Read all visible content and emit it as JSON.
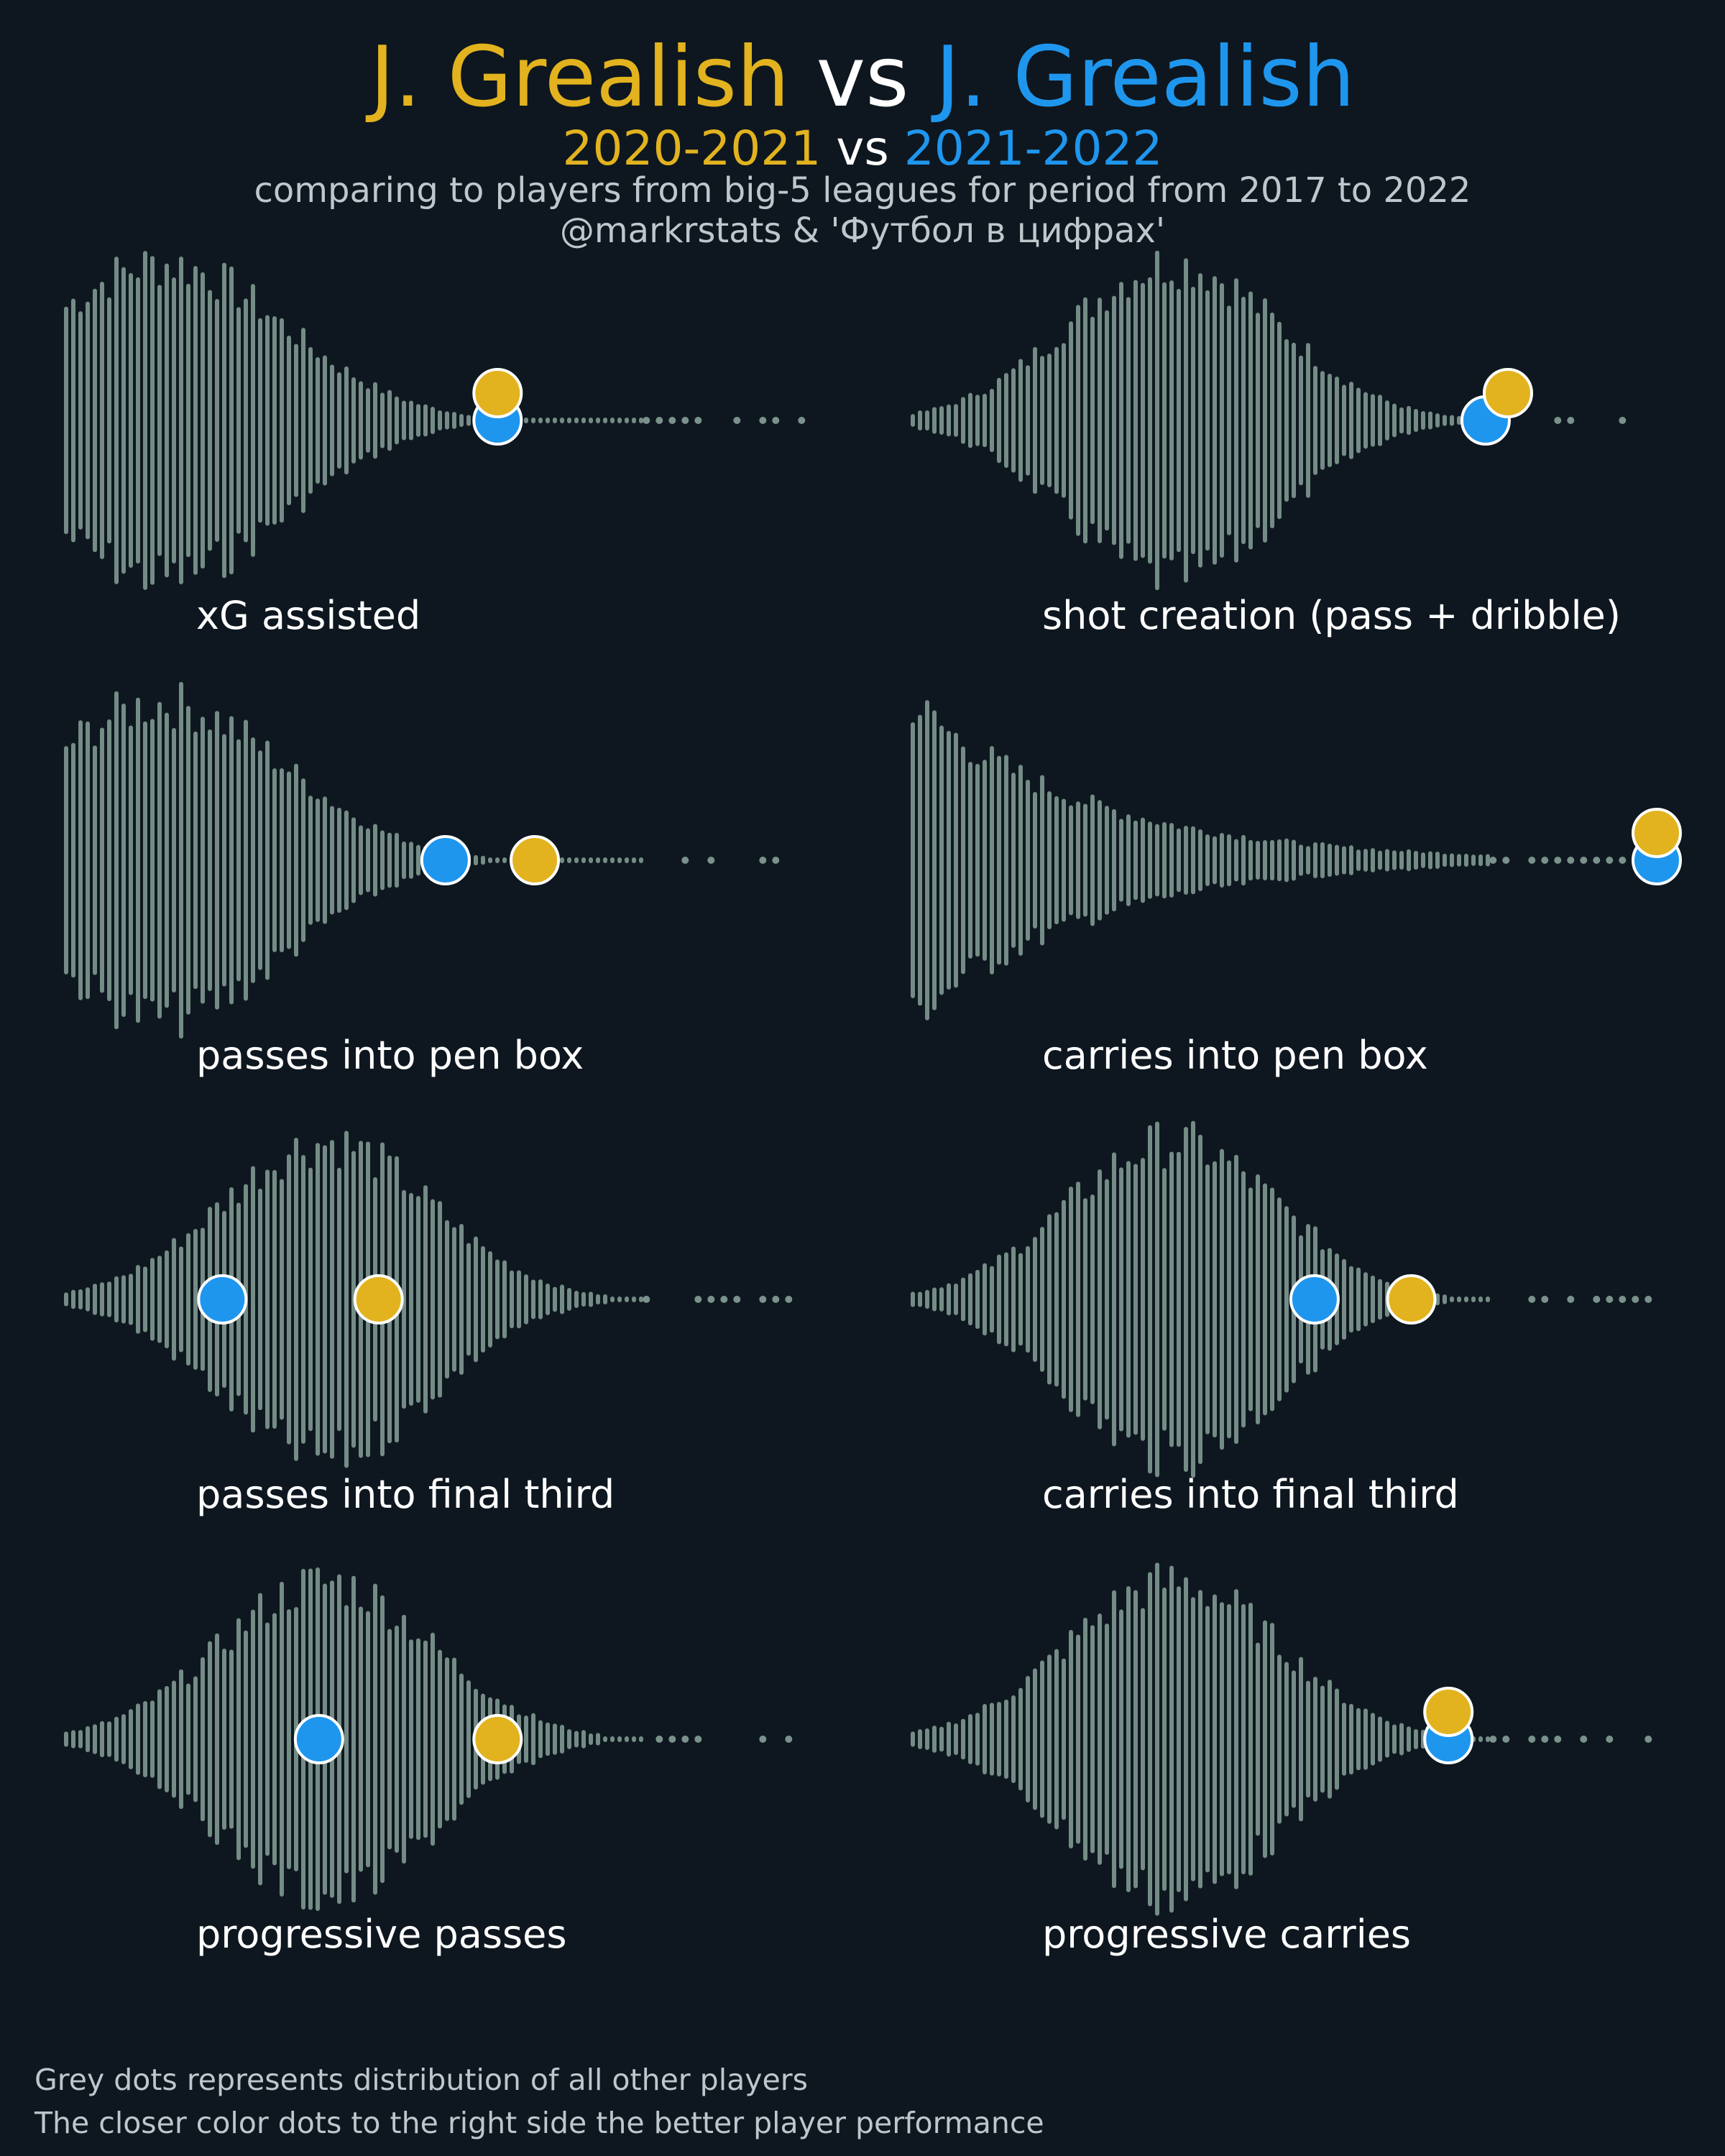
{
  "header": {
    "player1": "J. Grealish",
    "vs": "vs",
    "player2": "J. Grealish",
    "season1": "2020-2021",
    "season_vs": "vs",
    "season2": "2021-2022",
    "subtitle": "comparing to players from big-5 leagues for period from 2017 to 2022",
    "credit": "@markrstats & 'Футбол в цифрах'"
  },
  "colors": {
    "background": "#0e171f",
    "distribution_dots": "#7a928b",
    "season1": "#e2b31f",
    "season2": "#1f96ee"
  },
  "chart_data": [
    {
      "type": "scatter",
      "title": "xG assisted",
      "shape": "decay",
      "series": [
        {
          "name": "2021-2022",
          "x": 0.58
        },
        {
          "name": "2020-2021",
          "x": 0.58
        }
      ]
    },
    {
      "type": "scatter",
      "title": "shot creation (pass + dribble)",
      "shape": "peak",
      "series": [
        {
          "name": "2021-2022",
          "x": 0.77
        },
        {
          "name": "2020-2021",
          "x": 0.8
        }
      ]
    },
    {
      "type": "scatter",
      "title": "passes into pen box",
      "shape": "decay",
      "series": [
        {
          "name": "2021-2022",
          "x": 0.51
        },
        {
          "name": "2020-2021",
          "x": 0.63
        }
      ]
    },
    {
      "type": "scatter",
      "title": "carries into pen box",
      "shape": "exp",
      "series": [
        {
          "name": "2021-2022",
          "x": 1.0
        },
        {
          "name": "2020-2021",
          "x": 1.0
        }
      ]
    },
    {
      "type": "scatter",
      "title": "passes into final third",
      "shape": "peak",
      "series": [
        {
          "name": "2021-2022",
          "x": 0.21
        },
        {
          "name": "2020-2021",
          "x": 0.42
        }
      ]
    },
    {
      "type": "scatter",
      "title": "carries into final third",
      "shape": "peak",
      "series": [
        {
          "name": "2021-2022",
          "x": 0.54
        },
        {
          "name": "2020-2021",
          "x": 0.67
        }
      ]
    },
    {
      "type": "scatter",
      "title": "progressive passes",
      "shape": "peak",
      "series": [
        {
          "name": "2021-2022",
          "x": 0.34
        },
        {
          "name": "2020-2021",
          "x": 0.58
        }
      ]
    },
    {
      "type": "scatter",
      "title": "progressive carries",
      "shape": "peak",
      "series": [
        {
          "name": "2021-2022",
          "x": 0.72
        },
        {
          "name": "2020-2021",
          "x": 0.72
        }
      ]
    }
  ],
  "footer": {
    "line1": "Grey dots represents distribution of all other players",
    "line2": "The closer color dots to the right side the better player performance"
  }
}
